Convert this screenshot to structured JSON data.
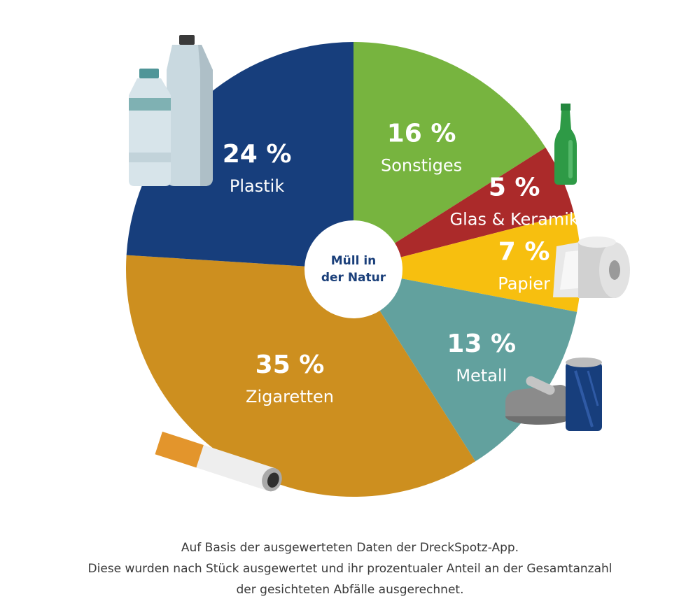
{
  "chart_data": {
    "type": "pie",
    "center_label": [
      "Müll in",
      "der Natur"
    ],
    "slices": [
      {
        "label": "Sonstiges",
        "value": 16,
        "value_label": "16 %",
        "color": "#77b43f",
        "icon": "glass-bottle-icon"
      },
      {
        "label": "Glas & Keramik",
        "value": 5,
        "value_label": "5 %",
        "color": "#ab2a2a",
        "icon": "glass-bottle-icon"
      },
      {
        "label": "Papier",
        "value": 7,
        "value_label": "7 %",
        "color": "#f7bf0f",
        "icon": "toilet-paper-icon"
      },
      {
        "label": "Metall",
        "value": 13,
        "value_label": "13 %",
        "color": "#62a19e",
        "icon": "tin-can-icon"
      },
      {
        "label": "Zigaretten",
        "value": 35,
        "value_label": "35 %",
        "color": "#cd8f1f",
        "icon": "cigarette-butt-icon"
      },
      {
        "label": "Plastik",
        "value": 24,
        "value_label": "24 %",
        "color": "#173e7c",
        "icon": "plastic-bottles-icon"
      }
    ]
  },
  "caption": [
    "Auf Basis der ausgewerteten Daten der DreckSpotz-App.",
    "Diese wurden nach Stück ausgewertet und ihr prozentualer Anteil an der Gesamtanzahl",
    "der gesichteten Abfälle ausgerechnet."
  ]
}
